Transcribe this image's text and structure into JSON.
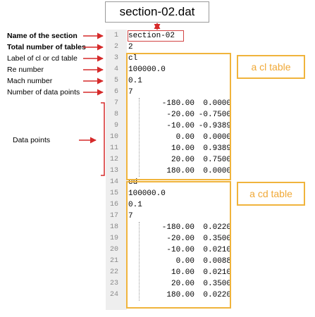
{
  "title": "section-02.dat",
  "labels": {
    "name": "Name of the section",
    "total": "Total number of tables",
    "label": "Label of cl or cd table",
    "re": "Re number",
    "mach": "Mach number",
    "npts": "Number of data points",
    "data": "Data points"
  },
  "tags": {
    "cl": "a cl table",
    "cd": "a cd table"
  },
  "file_lines": [
    "section-02",
    "2",
    "cl",
    "100000.0",
    "0.1",
    "7",
    "",
    "",
    "",
    "",
    "",
    "",
    "",
    "cd",
    "100000.0",
    "0.1",
    "7",
    "",
    "",
    "",
    "",
    "",
    "",
    ""
  ],
  "cl_table": [
    [
      "-180.00",
      "0.0000"
    ],
    [
      "-20.00",
      "-0.7500"
    ],
    [
      "-10.00",
      "-0.9389"
    ],
    [
      "0.00",
      "0.0000"
    ],
    [
      "10.00",
      "0.9389"
    ],
    [
      "20.00",
      "0.7500"
    ],
    [
      "180.00",
      "0.0000"
    ]
  ],
  "cd_table": [
    [
      "-180.00",
      "0.0220"
    ],
    [
      "-20.00",
      "0.3500"
    ],
    [
      "-10.00",
      "0.0210"
    ],
    [
      "0.00",
      "0.0088"
    ],
    [
      "10.00",
      "0.0210"
    ],
    [
      "20.00",
      "0.3500"
    ],
    [
      "180.00",
      "0.0220"
    ]
  ],
  "colors": {
    "arrow": "#d62a2a",
    "table_box": "#f0b43c",
    "tag_text": "#f0a836"
  }
}
